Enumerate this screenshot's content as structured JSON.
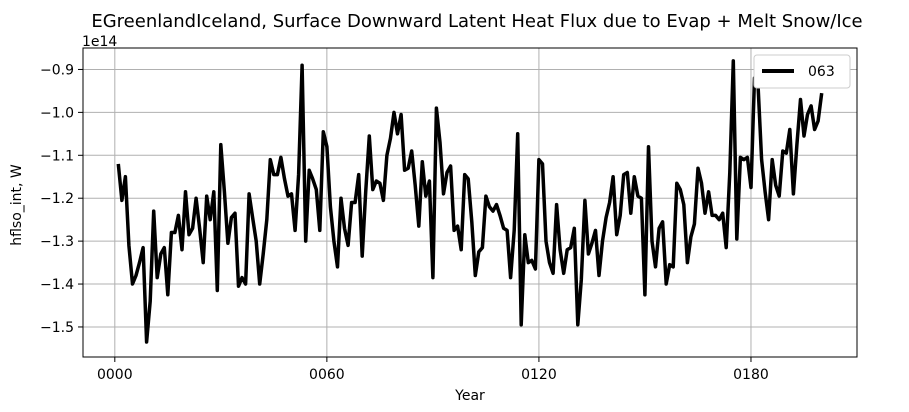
{
  "chart_data": {
    "type": "line",
    "title": "EGreenlandIceland, Surface Downward Latent Heat Flux due to Evap + Melt Snow/Ice",
    "xlabel": "Year",
    "ylabel": "hflso_int, W",
    "y_offset_label": "1e14",
    "y_scale_factor": 100000000000000.0,
    "xlim": [
      -9,
      210
    ],
    "ylim": [
      -1.57,
      -0.85
    ],
    "x_ticks": [
      0,
      60,
      120,
      180
    ],
    "x_tick_labels": [
      "0000",
      "0060",
      "0120",
      "0180"
    ],
    "y_ticks": [
      -1.5,
      -1.4,
      -1.3,
      -1.2,
      -1.1,
      -1.0,
      -0.9
    ],
    "y_tick_labels": [
      "−1.5",
      "−1.4",
      "−1.3",
      "−1.2",
      "−1.1",
      "−1.0",
      "−0.9"
    ],
    "grid": true,
    "legend_position": "top-right",
    "color": "#000000",
    "series": [
      {
        "name": "063",
        "x_start": 1,
        "x_step": 1,
        "values": [
          -1.12,
          -1.205,
          -1.15,
          -1.31,
          -1.4,
          -1.38,
          -1.35,
          -1.315,
          -1.535,
          -1.44,
          -1.23,
          -1.385,
          -1.33,
          -1.315,
          -1.425,
          -1.28,
          -1.28,
          -1.24,
          -1.32,
          -1.185,
          -1.285,
          -1.27,
          -1.2,
          -1.27,
          -1.35,
          -1.195,
          -1.25,
          -1.185,
          -1.415,
          -1.075,
          -1.185,
          -1.305,
          -1.245,
          -1.235,
          -1.405,
          -1.385,
          -1.4,
          -1.19,
          -1.245,
          -1.3,
          -1.4,
          -1.33,
          -1.25,
          -1.11,
          -1.145,
          -1.145,
          -1.105,
          -1.155,
          -1.195,
          -1.19,
          -1.275,
          -1.145,
          -0.89,
          -1.3,
          -1.135,
          -1.155,
          -1.18,
          -1.275,
          -1.045,
          -1.08,
          -1.22,
          -1.3,
          -1.36,
          -1.2,
          -1.27,
          -1.31,
          -1.21,
          -1.21,
          -1.145,
          -1.335,
          -1.185,
          -1.055,
          -1.18,
          -1.16,
          -1.165,
          -1.205,
          -1.1,
          -1.06,
          -1.0,
          -1.05,
          -1.005,
          -1.135,
          -1.13,
          -1.09,
          -1.17,
          -1.265,
          -1.115,
          -1.195,
          -1.16,
          -1.385,
          -0.99,
          -1.07,
          -1.19,
          -1.14,
          -1.125,
          -1.275,
          -1.265,
          -1.32,
          -1.145,
          -1.155,
          -1.255,
          -1.38,
          -1.325,
          -1.315,
          -1.195,
          -1.22,
          -1.23,
          -1.215,
          -1.24,
          -1.27,
          -1.275,
          -1.385,
          -1.275,
          -1.05,
          -1.495,
          -1.285,
          -1.35,
          -1.345,
          -1.365,
          -1.11,
          -1.12,
          -1.3,
          -1.35,
          -1.375,
          -1.215,
          -1.32,
          -1.375,
          -1.32,
          -1.315,
          -1.27,
          -1.495,
          -1.39,
          -1.205,
          -1.33,
          -1.305,
          -1.275,
          -1.38,
          -1.3,
          -1.245,
          -1.21,
          -1.15,
          -1.285,
          -1.24,
          -1.145,
          -1.14,
          -1.235,
          -1.15,
          -1.195,
          -1.2,
          -1.425,
          -1.08,
          -1.3,
          -1.36,
          -1.27,
          -1.255,
          -1.4,
          -1.355,
          -1.36,
          -1.165,
          -1.18,
          -1.215,
          -1.35,
          -1.29,
          -1.26,
          -1.13,
          -1.165,
          -1.235,
          -1.185,
          -1.24,
          -1.24,
          -1.25,
          -1.235,
          -1.315,
          -1.14,
          -0.88,
          -1.295,
          -1.105,
          -1.11,
          -1.105,
          -1.175,
          -0.92,
          -0.935,
          -1.11,
          -1.185,
          -1.25,
          -1.11,
          -1.17,
          -1.195,
          -1.09,
          -1.095,
          -1.04,
          -1.19,
          -1.075,
          -0.97,
          -1.055,
          -1.005,
          -0.985,
          -1.04,
          -1.02,
          -0.955
        ]
      }
    ]
  }
}
